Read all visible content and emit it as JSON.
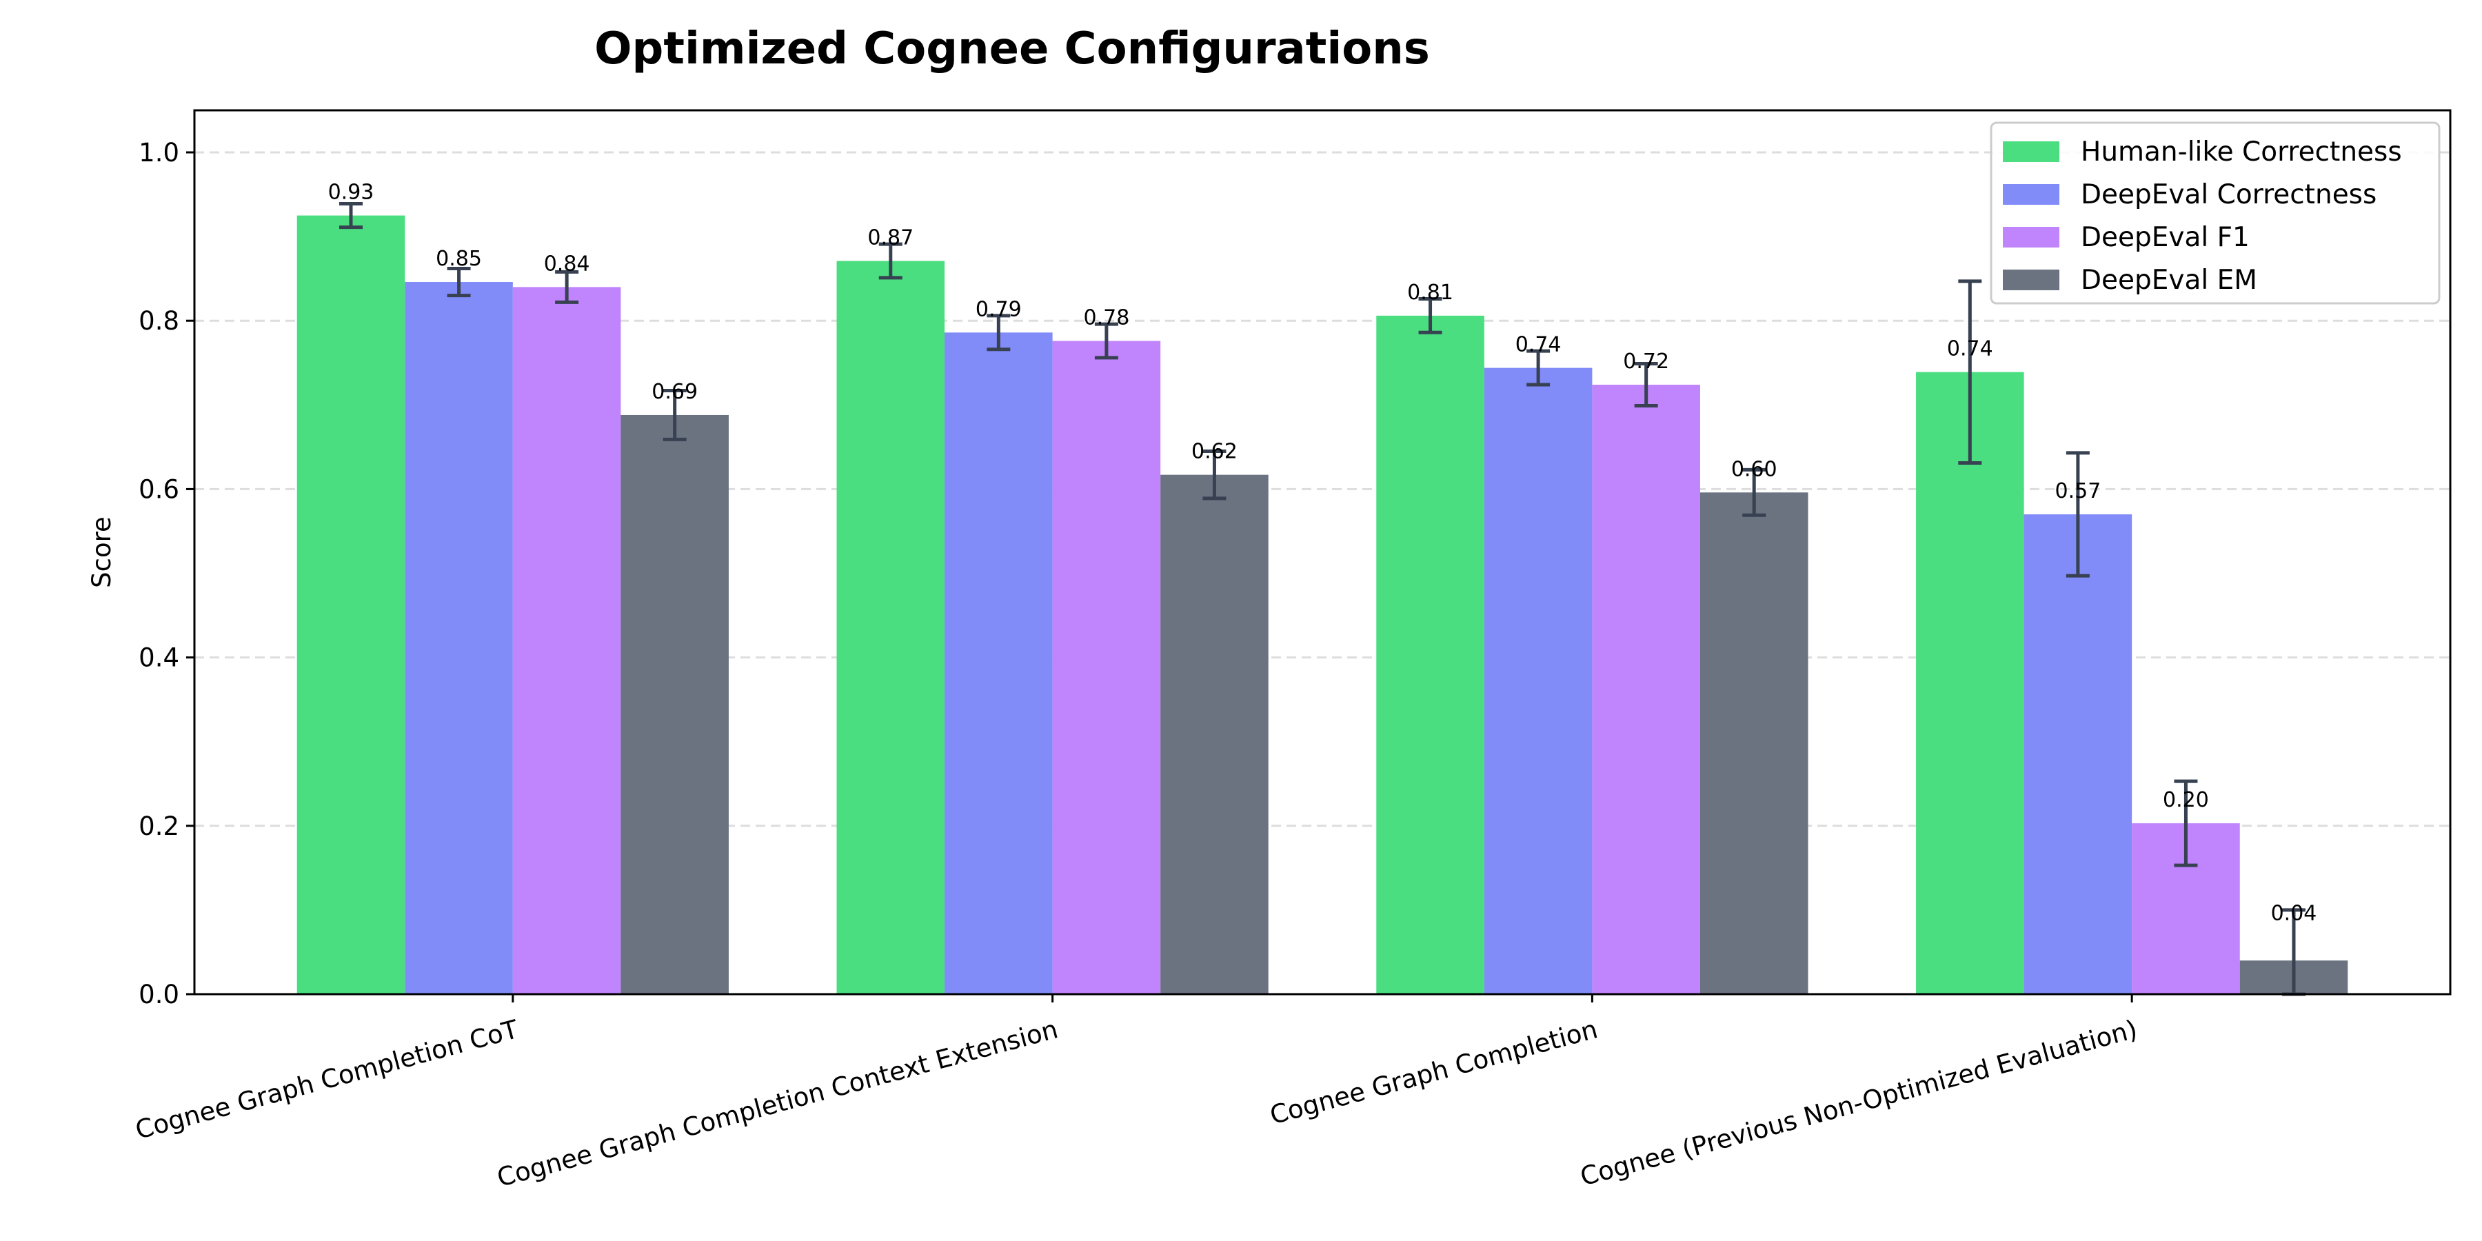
{
  "chart_data": {
    "type": "bar",
    "title": "Optimized Cognee Configurations",
    "xlabel": "",
    "ylabel": "Score",
    "ylim": [
      0,
      1.05
    ],
    "yticks": [
      "0.0",
      "0.2",
      "0.4",
      "0.6",
      "0.8",
      "1.0"
    ],
    "grid": "y-dashed",
    "legend_position": "top-right",
    "categories": [
      "Cognee Graph Completion CoT",
      "Cognee Graph Completion Context Extension",
      "Cognee Graph Completion",
      "Cognee (Previous Non-Optimized Evaluation)"
    ],
    "series": [
      {
        "name": "Human-like Correctness",
        "color": "#4ade80",
        "values": [
          0.925,
          0.871,
          0.806,
          0.739
        ],
        "errors": [
          0.014,
          0.02,
          0.02,
          0.108
        ],
        "labels": [
          "0.93",
          "0.87",
          "0.81",
          "0.74"
        ]
      },
      {
        "name": "DeepEval Correctness",
        "color": "#818cf8",
        "values": [
          0.846,
          0.786,
          0.744,
          0.57
        ],
        "errors": [
          0.016,
          0.02,
          0.02,
          0.073
        ],
        "labels": [
          "0.85",
          "0.79",
          "0.74",
          "0.57"
        ]
      },
      {
        "name": "DeepEval F1",
        "color": "#c084fc",
        "values": [
          0.84,
          0.776,
          0.724,
          0.203
        ],
        "errors": [
          0.018,
          0.02,
          0.025,
          0.05
        ],
        "labels": [
          "0.84",
          "0.78",
          "0.72",
          "0.20"
        ]
      },
      {
        "name": "DeepEval EM",
        "color": "#6b7280",
        "values": [
          0.688,
          0.617,
          0.596,
          0.04
        ],
        "errors": [
          0.029,
          0.028,
          0.027,
          0.06
        ],
        "labels": [
          "0.69",
          "0.62",
          "0.60",
          "0.04"
        ]
      }
    ],
    "error_bar_color": "#374151"
  }
}
